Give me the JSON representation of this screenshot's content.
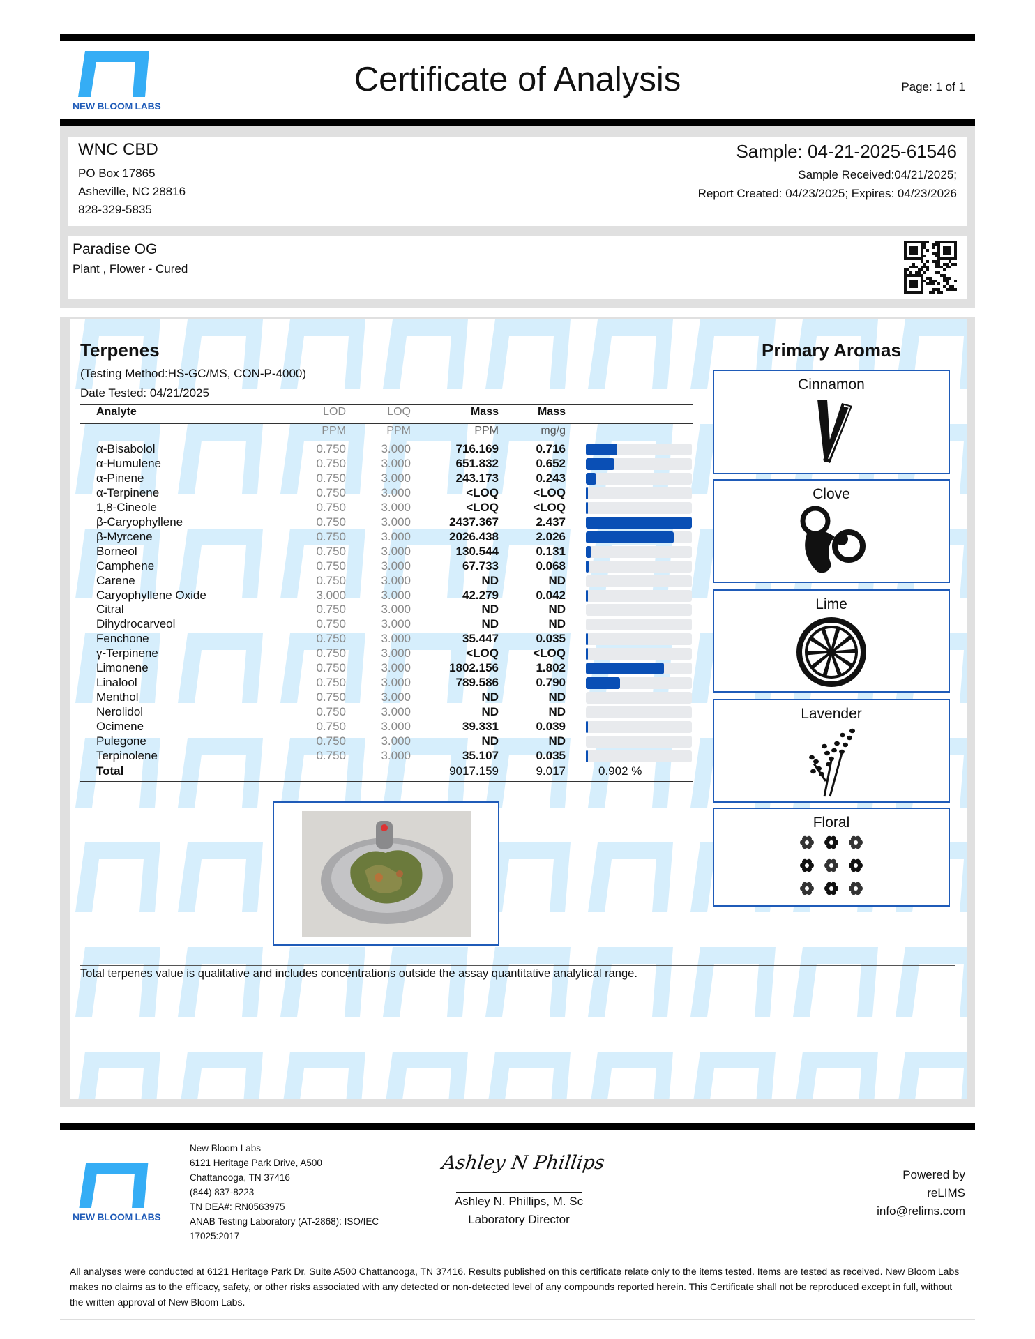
{
  "header": {
    "logo_text": "NEW BLOOM LABS",
    "title": "Certificate of Analysis",
    "page": "Page: 1 of 1"
  },
  "client": {
    "name": "WNC CBD",
    "address1": "PO Box 17865",
    "address2": "Asheville, NC 28816",
    "phone": "828-329-5835"
  },
  "sample": {
    "id": "Sample: 04-21-2025-61546",
    "received": "Sample Received:04/21/2025;",
    "report": "Report Created: 04/23/2025; Expires: 04/23/2026"
  },
  "product": {
    "name": "Paradise OG",
    "type": "Plant , Flower - Cured"
  },
  "terpenes": {
    "title": "Terpenes",
    "method": "(Testing Method:HS-GC/MS, CON-P-4000)",
    "date": "Date Tested: 04/21/2025",
    "headers": [
      "Analyte",
      "LOD",
      "LOQ",
      "Mass",
      "Mass"
    ],
    "units": [
      "PPM",
      "PPM",
      "PPM",
      "mg/g"
    ],
    "rows": [
      {
        "name": "α-Bisabolol",
        "lod": "0.750",
        "loq": "3.000",
        "ppm": "716.169",
        "mg": "0.716",
        "v": 0.716
      },
      {
        "name": "α-Humulene",
        "lod": "0.750",
        "loq": "3.000",
        "ppm": "651.832",
        "mg": "0.652",
        "v": 0.652
      },
      {
        "name": "α-Pinene",
        "lod": "0.750",
        "loq": "3.000",
        "ppm": "243.173",
        "mg": "0.243",
        "v": 0.243
      },
      {
        "name": "α-Terpinene",
        "lod": "0.750",
        "loq": "3.000",
        "ppm": "<LOQ",
        "mg": "<LOQ",
        "v": 0.001
      },
      {
        "name": "1,8-Cineole",
        "lod": "0.750",
        "loq": "3.000",
        "ppm": "<LOQ",
        "mg": "<LOQ",
        "v": 0.001
      },
      {
        "name": "β-Caryophyllene",
        "lod": "0.750",
        "loq": "3.000",
        "ppm": "2437.367",
        "mg": "2.437",
        "v": 2.437
      },
      {
        "name": "β-Myrcene",
        "lod": "0.750",
        "loq": "3.000",
        "ppm": "2026.438",
        "mg": "2.026",
        "v": 2.026
      },
      {
        "name": "Borneol",
        "lod": "0.750",
        "loq": "3.000",
        "ppm": "130.544",
        "mg": "0.131",
        "v": 0.131
      },
      {
        "name": "Camphene",
        "lod": "0.750",
        "loq": "3.000",
        "ppm": "67.733",
        "mg": "0.068",
        "v": 0.068
      },
      {
        "name": "Carene",
        "lod": "0.750",
        "loq": "3.000",
        "ppm": "ND",
        "mg": "ND",
        "v": 0
      },
      {
        "name": "Caryophyllene Oxide",
        "lod": "3.000",
        "loq": "3.000",
        "ppm": "42.279",
        "mg": "0.042",
        "v": 0.042
      },
      {
        "name": "Citral",
        "lod": "0.750",
        "loq": "3.000",
        "ppm": "ND",
        "mg": "ND",
        "v": 0
      },
      {
        "name": "Dihydrocarveol",
        "lod": "0.750",
        "loq": "3.000",
        "ppm": "ND",
        "mg": "ND",
        "v": 0
      },
      {
        "name": "Fenchone",
        "lod": "0.750",
        "loq": "3.000",
        "ppm": "35.447",
        "mg": "0.035",
        "v": 0.035
      },
      {
        "name": "γ-Terpinene",
        "lod": "0.750",
        "loq": "3.000",
        "ppm": "<LOQ",
        "mg": "<LOQ",
        "v": 0.001
      },
      {
        "name": "Limonene",
        "lod": "0.750",
        "loq": "3.000",
        "ppm": "1802.156",
        "mg": "1.802",
        "v": 1.802
      },
      {
        "name": "Linalool",
        "lod": "0.750",
        "loq": "3.000",
        "ppm": "789.586",
        "mg": "0.790",
        "v": 0.79
      },
      {
        "name": "Menthol",
        "lod": "0.750",
        "loq": "3.000",
        "ppm": "ND",
        "mg": "ND",
        "v": 0
      },
      {
        "name": "Nerolidol",
        "lod": "0.750",
        "loq": "3.000",
        "ppm": "ND",
        "mg": "ND",
        "v": 0
      },
      {
        "name": "Ocimene",
        "lod": "0.750",
        "loq": "3.000",
        "ppm": "39.331",
        "mg": "0.039",
        "v": 0.039
      },
      {
        "name": "Pulegone",
        "lod": "0.750",
        "loq": "3.000",
        "ppm": "ND",
        "mg": "ND",
        "v": 0
      },
      {
        "name": "Terpinolene",
        "lod": "0.750",
        "loq": "3.000",
        "ppm": "35.107",
        "mg": "0.035",
        "v": 0.035
      }
    ],
    "total": {
      "label": "Total",
      "ppm": "9017.159",
      "mg": "9.017",
      "percent": "0.902 %"
    },
    "bar_color": "#0a4fb5",
    "note": "Total terpenes value is qualitative and includes concentrations outside the assay quantitative analytical range."
  },
  "aromas": {
    "title": "Primary Aromas",
    "items": [
      {
        "label": "Cinnamon",
        "icon": "cinnamon-icon"
      },
      {
        "label": "Clove",
        "icon": "clove-icon"
      },
      {
        "label": "Lime",
        "icon": "lime-icon"
      },
      {
        "label": "Lavender",
        "icon": "lavender-icon"
      },
      {
        "label": "Floral",
        "icon": "floral-icon"
      }
    ]
  },
  "footer": {
    "lab_lines": [
      "New Bloom Labs",
      "6121 Heritage Park Drive, A500",
      "Chattanooga, TN 37416",
      "(844) 837-8223",
      "TN DEA#: RN0563975",
      "ANAB Testing Laboratory (AT-2868): ISO/IEC",
      "17025:2017"
    ],
    "signature": "Ashley N Phillips",
    "signer": "Ashley N. Phillips, M. Sc",
    "signer_title": "Laboratory Director",
    "powered": [
      "Powered by",
      "reLIMS",
      "info@relims.com"
    ],
    "disclaimer": "All analyses were conducted at 6121 Heritage Park Dr, Suite A500 Chattanooga, TN 37416. Results published on this certificate relate only to the items tested. Items are tested as received. New Bloom Labs makes no claims as to the efficacy, safety, or other risks associated with any detected or non-detected level of any compounds reported herein. This Certificate shall not be reproduced except in full, without the written approval of New Bloom Labs."
  },
  "colors": {
    "brand": "#1f5bb8",
    "logo": "#35adf5",
    "watermark": "#d6eefc"
  }
}
